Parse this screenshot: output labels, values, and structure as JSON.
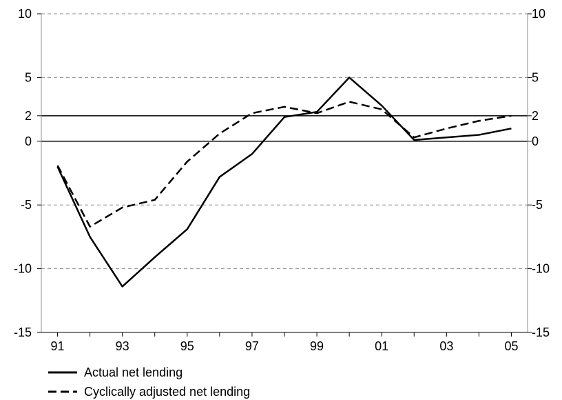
{
  "chart_data": {
    "type": "line",
    "title": "",
    "xlabel": "",
    "ylabel": "",
    "x": [
      1991,
      1992,
      1993,
      1994,
      1995,
      1996,
      1997,
      1998,
      1999,
      2000,
      2001,
      2002,
      2003,
      2004,
      2005
    ],
    "x_tick_values": [
      1991,
      1993,
      1995,
      1997,
      1999,
      2001,
      2003,
      2005
    ],
    "x_tick_labels": [
      "91",
      "93",
      "95",
      "97",
      "99",
      "01",
      "03",
      "05"
    ],
    "ylim": [
      -15,
      10
    ],
    "y_ticks": [
      -15,
      -10,
      -5,
      0,
      2,
      5,
      10
    ],
    "y_tick_labels": [
      "-15",
      "-10",
      "-5",
      "0",
      "2",
      "5",
      "10"
    ],
    "reference_lines": [
      0,
      2
    ],
    "grid_lines": [
      5,
      -5,
      -10
    ],
    "legend_position": "bottom-left",
    "series": [
      {
        "name": "Actual net lending",
        "style": "solid",
        "values": [
          -2.0,
          -7.5,
          -11.4,
          -9.1,
          -6.9,
          -2.8,
          -1.0,
          1.9,
          2.3,
          5.0,
          2.8,
          0.1,
          0.3,
          0.5,
          1.0
        ]
      },
      {
        "name": "Cyclically adjusted net lending",
        "style": "dashed",
        "values": [
          -1.9,
          -6.7,
          -5.2,
          -4.6,
          -1.6,
          0.6,
          2.2,
          2.7,
          2.2,
          3.1,
          2.5,
          0.3,
          1.0,
          1.6,
          2.0
        ]
      }
    ]
  }
}
